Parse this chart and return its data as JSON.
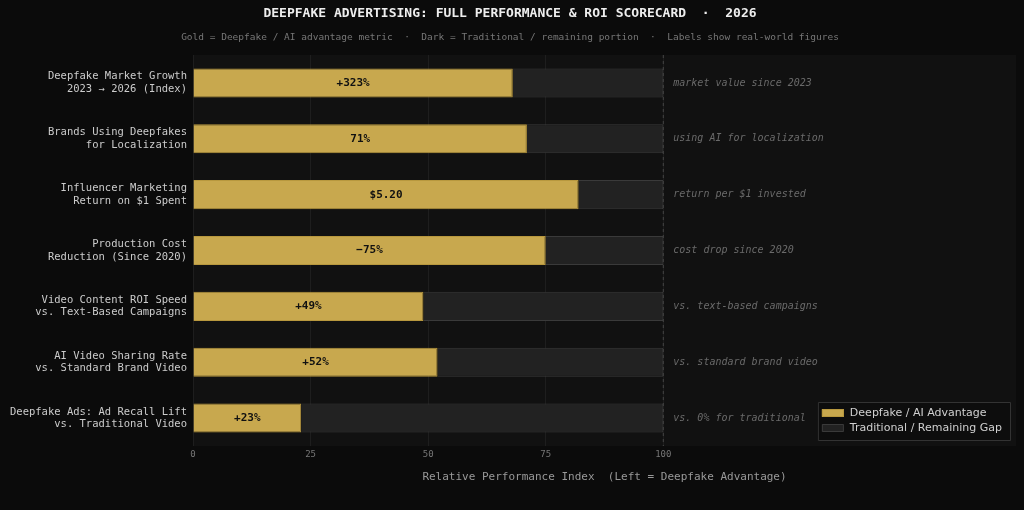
{
  "chart_data": {
    "type": "bar",
    "orientation": "horizontal",
    "stacked": true,
    "title": "DEEPFAKE ADVERTISING: FULL PERFORMANCE & ROI SCORECARD  ·  2026",
    "subtitle": "Gold = Deepfake / AI advantage metric  ·  Dark = Traditional / remaining portion  ·  Labels show real-world figures",
    "xlabel": "Relative Performance Index  (Left = Deepfake Advantage)",
    "categories": [
      "Deepfake Market Growth\n2023 → 2026 (Index)",
      "Brands Using Deepfakes\nfor Localization",
      "Influencer Marketing\nReturn on $1 Spent",
      "Production Cost\nReduction (Since 2020)",
      "Video Content ROI Speed\nvs. Text-Based Campaigns",
      "AI Video Sharing Rate\nvs. Standard Brand Video",
      "Deepfake Ads: Ad Recall Lift\nvs. Traditional Video"
    ],
    "series": [
      {
        "name": "Deepfake / AI Advantage",
        "color": "#c8a84e",
        "values": [
          68,
          71,
          82,
          75,
          49,
          52,
          23
        ]
      },
      {
        "name": "Traditional / Remaining Gap",
        "color": "#222222",
        "values": [
          32,
          29,
          18,
          25,
          51,
          48,
          77
        ]
      }
    ],
    "xlim": [
      0,
      175
    ],
    "xticks": [
      0,
      25,
      50,
      75,
      100
    ],
    "ref_lines": [
      {
        "axis": "x",
        "value": 100,
        "color": "#444444",
        "line_style": "dashed"
      }
    ],
    "annotations": [
      "+323%",
      "71%",
      "$5.20",
      "−75%",
      "+49%",
      "+52%",
      "+23%",
      "market value since 2023",
      "using AI for localization",
      "return per $1 invested",
      "cost drop since 2020",
      "vs. text-based campaigns",
      "vs. standard brand video",
      "vs. 0% for traditional"
    ],
    "grid": "x",
    "legend": "bottom right"
  }
}
